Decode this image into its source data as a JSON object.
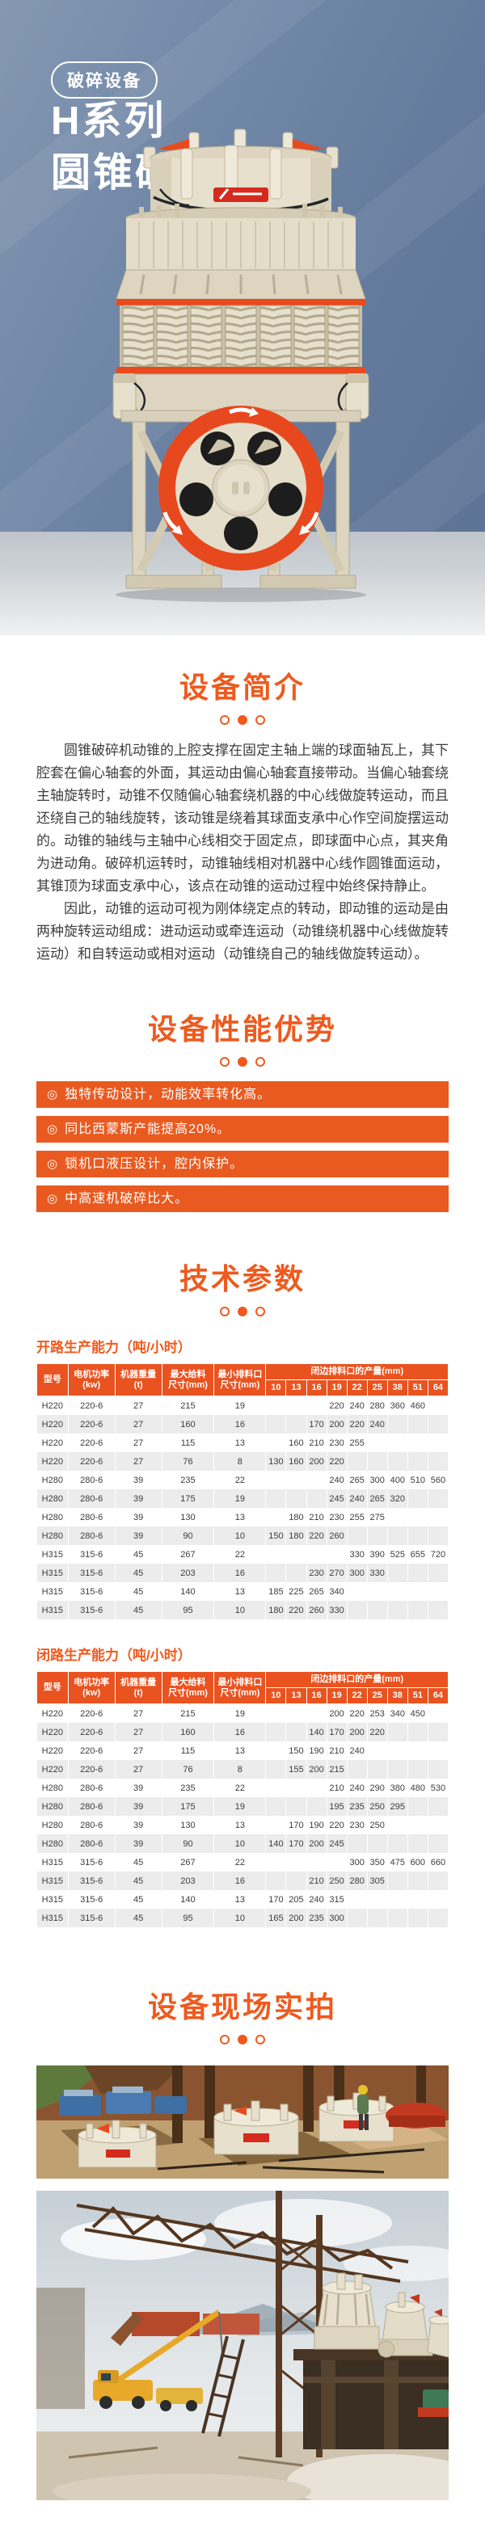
{
  "theme": {
    "accent_orange": "#ee5a1e",
    "bar_orange": "#e95a20",
    "table_header_orange": "#e95320",
    "hero_blue": "#667c9e",
    "alt_row_gray": "#ececec",
    "body_text": "#3d3d3d"
  },
  "header": {
    "badge": "破碎设备",
    "title_line1": "H系列",
    "title_line2": "圆锥破碎机",
    "product_image": "cone-crusher-front-view"
  },
  "sections": {
    "intro": {
      "title": "设备简介",
      "paragraphs": [
        "圆锥破碎机动锥的上腔支撑在固定主轴上端的球面轴瓦上，其下腔套在偏心轴套的外面，其运动由偏心轴套直接带动。当偏心轴套绕主轴旋转时，动锥不仅随偏心轴套绕机器的中心线做旋转运动，而且还绕自己的轴线旋转，该动锥是绕着其球面支承中心作空间旋摆运动的。动锥的轴线与主轴中心线相交于固定点，即球面中心点，其夹角为进动角。破碎机运转时，动锥轴线相对机器中心线作圆锥面运动，其锥顶为球面支承中心，该点在动锥的运动过程中始终保持静止。",
        "因此，动锥的运动可视为刚体绕定点的转动，即动锥的运动是由两种旋转运动组成：进动运动或牵连运动（动锥绕机器中心线做旋转运动）和自转运动或相对运动（动锥绕自己的轴线做旋转运动）。"
      ]
    },
    "advantages": {
      "title": "设备性能优势",
      "bullet": "◎",
      "items": [
        "独特传动设计，动能效率转化高。",
        "同比西蒙斯产能提高20%。",
        "锁机口液压设计，腔内保护。",
        "中高速机破碎比大。"
      ]
    },
    "parameters": {
      "title": "技术参数",
      "tables": [
        {
          "caption": "开路生产能力（吨/小时）",
          "columns": [
            "型号",
            "电机功率\n(kw)",
            "机器重量\n(t)",
            "最大给料\n尺寸(mm)",
            "最小排料口\n尺寸(mm)"
          ],
          "group_label": "闭边排料口的产量(mm)",
          "sizes": [
            "10",
            "13",
            "16",
            "19",
            "22",
            "25",
            "38",
            "51",
            "64"
          ],
          "rows": [
            [
              "H220",
              "220-6",
              "27",
              "215",
              "19",
              "",
              "",
              "",
              "220",
              "240",
              "280",
              "360",
              "460",
              ""
            ],
            [
              "H220",
              "220-6",
              "27",
              "160",
              "16",
              "",
              "",
              "170",
              "200",
              "220",
              "240",
              "",
              "",
              ""
            ],
            [
              "H220",
              "220-6",
              "27",
              "115",
              "13",
              "",
              "160",
              "210",
              "230",
              "255",
              "",
              "",
              "",
              ""
            ],
            [
              "H220",
              "220-6",
              "27",
              "76",
              "8",
              "130",
              "160",
              "200",
              "220",
              "",
              "",
              "",
              "",
              ""
            ],
            [
              "H280",
              "280-6",
              "39",
              "235",
              "22",
              "",
              "",
              "",
              "240",
              "265",
              "300",
              "400",
              "510",
              "560"
            ],
            [
              "H280",
              "280-6",
              "39",
              "175",
              "19",
              "",
              "",
              "",
              "245",
              "240",
              "265",
              "320",
              "",
              ""
            ],
            [
              "H280",
              "280-6",
              "39",
              "130",
              "13",
              "",
              "180",
              "210",
              "230",
              "255",
              "275",
              "",
              "",
              ""
            ],
            [
              "H280",
              "280-6",
              "39",
              "90",
              "10",
              "150",
              "180",
              "220",
              "260",
              "",
              "",
              "",
              "",
              ""
            ],
            [
              "H315",
              "315-6",
              "45",
              "267",
              "22",
              "",
              "",
              "",
              "",
              "330",
              "390",
              "525",
              "655",
              "720"
            ],
            [
              "H315",
              "315-6",
              "45",
              "203",
              "16",
              "",
              "",
              "230",
              "270",
              "300",
              "330",
              "",
              "",
              ""
            ],
            [
              "H315",
              "315-6",
              "45",
              "140",
              "13",
              "185",
              "225",
              "265",
              "340",
              "",
              "",
              "",
              "",
              ""
            ],
            [
              "H315",
              "315-6",
              "45",
              "95",
              "10",
              "180",
              "220",
              "260",
              "330",
              "",
              "",
              "",
              "",
              ""
            ]
          ]
        },
        {
          "caption": "闭路生产能力（吨/小时）",
          "columns": [
            "型号",
            "电机功率\n(kw)",
            "机器重量\n(t)",
            "最大给料\n尺寸(mm)",
            "最小排料口\n尺寸(mm)"
          ],
          "group_label": "闭边排料口的产量(mm)",
          "sizes": [
            "10",
            "13",
            "16",
            "19",
            "22",
            "25",
            "38",
            "51",
            "64"
          ],
          "rows": [
            [
              "H220",
              "220-6",
              "27",
              "215",
              "19",
              "",
              "",
              "",
              "200",
              "220",
              "253",
              "340",
              "450",
              ""
            ],
            [
              "H220",
              "220-6",
              "27",
              "160",
              "16",
              "",
              "",
              "140",
              "170",
              "200",
              "220",
              "",
              "",
              ""
            ],
            [
              "H220",
              "220-6",
              "27",
              "115",
              "13",
              "",
              "150",
              "190",
              "210",
              "240",
              "",
              "",
              "",
              ""
            ],
            [
              "H220",
              "220-6",
              "27",
              "76",
              "8",
              "",
              "155",
              "200",
              "215",
              "",
              "",
              "",
              "",
              ""
            ],
            [
              "H280",
              "280-6",
              "39",
              "235",
              "22",
              "",
              "",
              "",
              "210",
              "240",
              "290",
              "380",
              "480",
              "530"
            ],
            [
              "H280",
              "280-6",
              "39",
              "175",
              "19",
              "",
              "",
              "",
              "195",
              "235",
              "250",
              "295",
              "",
              ""
            ],
            [
              "H280",
              "280-6",
              "39",
              "130",
              "13",
              "",
              "170",
              "190",
              "220",
              "230",
              "250",
              "",
              "",
              ""
            ],
            [
              "H280",
              "280-6",
              "39",
              "90",
              "10",
              "140",
              "170",
              "200",
              "245",
              "",
              "",
              "",
              "",
              ""
            ],
            [
              "H315",
              "315-6",
              "45",
              "267",
              "22",
              "",
              "",
              "",
              "",
              "300",
              "350",
              "475",
              "600",
              "660"
            ],
            [
              "H315",
              "315-6",
              "45",
              "203",
              "16",
              "",
              "",
              "210",
              "250",
              "280",
              "305",
              "",
              "",
              ""
            ],
            [
              "H315",
              "315-6",
              "45",
              "140",
              "13",
              "170",
              "205",
              "240",
              "315",
              "",
              "",
              "",
              "",
              ""
            ],
            [
              "H315",
              "315-6",
              "45",
              "95",
              "10",
              "165",
              "200",
              "235",
              "300",
              "",
              "",
              "",
              "",
              ""
            ]
          ]
        }
      ]
    },
    "photos": {
      "title": "设备现场实拍",
      "count": 2
    }
  }
}
